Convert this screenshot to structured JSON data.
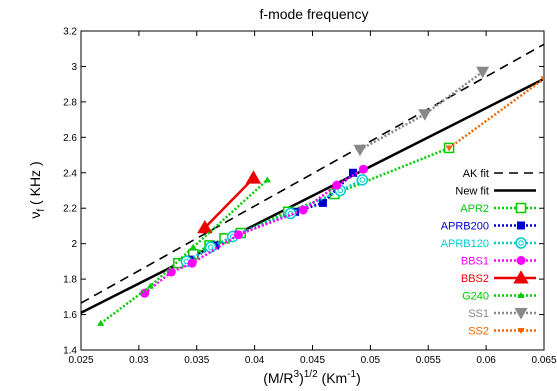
{
  "chart_data": {
    "type": "line",
    "title": "f-mode frequency",
    "ylabel_main": "ν",
    "ylabel_sub": "f",
    "ylabel_unit": " ( KHz )",
    "xlabel_main": "(M/R",
    "xlabel_sup1": "3",
    "xlabel_mid": ")",
    "xlabel_sup2": "1/2",
    "xlabel_unit": " (Km",
    "xlabel_sup3": "-1",
    "xlabel_end": ")",
    "xlim": [
      0.025,
      0.065
    ],
    "ylim": [
      1.4,
      3.2
    ],
    "xticks": [
      "0.025",
      "0.03",
      "0.035",
      "0.04",
      "0.045",
      "0.05",
      "0.055",
      "0.06",
      "0.065"
    ],
    "yticks": [
      "1.4",
      "1.6",
      "1.8",
      "2",
      "2.2",
      "2.4",
      "2.6",
      "2.8",
      "3",
      "3.2"
    ],
    "grid": false,
    "legend_position": "right",
    "series": [
      {
        "name": "AK fit",
        "color": "#000000",
        "style": "dashed",
        "marker": "none",
        "x": [
          0.025,
          0.065
        ],
        "y": [
          1.665,
          3.125
        ]
      },
      {
        "name": "New fit",
        "color": "#000000",
        "style": "solid",
        "marker": "none",
        "x": [
          0.025,
          0.065
        ],
        "y": [
          1.61,
          2.93
        ]
      },
      {
        "name": "APR2",
        "color": "#00cc00",
        "style": "dotted",
        "marker": "open-square",
        "x": [
          0.0334,
          0.0347,
          0.0361,
          0.0374,
          0.0388,
          0.0429,
          0.0469,
          0.0568
        ],
        "y": [
          1.89,
          1.94,
          1.99,
          2.03,
          2.06,
          2.18,
          2.28,
          2.54
        ]
      },
      {
        "name": "APRB200",
        "color": "#0000cc",
        "style": "dotted",
        "marker": "filled-square",
        "x": [
          0.0344,
          0.0366,
          0.0384,
          0.0435,
          0.0459,
          0.0485
        ],
        "y": [
          1.91,
          1.99,
          2.05,
          2.18,
          2.23,
          2.4
        ]
      },
      {
        "name": "APRB120",
        "color": "#00cccc",
        "style": "dotted",
        "marker": "open-circle",
        "x": [
          0.0341,
          0.0362,
          0.0381,
          0.0431,
          0.0474,
          0.0493
        ],
        "y": [
          1.9,
          1.98,
          2.04,
          2.17,
          2.3,
          2.36
        ]
      },
      {
        "name": "BBS1",
        "color": "#ff00ff",
        "style": "dotted",
        "marker": "filled-circle",
        "x": [
          0.0305,
          0.0328,
          0.0346,
          0.0386,
          0.0442,
          0.0471,
          0.0494
        ],
        "y": [
          1.72,
          1.84,
          1.89,
          2.05,
          2.19,
          2.33,
          2.42
        ]
      },
      {
        "name": "BBS2",
        "color": "#ee0000",
        "style": "solid",
        "marker": "filled-triangle",
        "x": [
          0.0357,
          0.0399
        ],
        "y": [
          2.09,
          2.37
        ]
      },
      {
        "name": "G240",
        "color": "#00cc00",
        "style": "dotted",
        "marker": "small-triangle",
        "x": [
          0.0267,
          0.031,
          0.0347,
          0.0411
        ],
        "y": [
          1.55,
          1.76,
          1.98,
          2.36
        ]
      },
      {
        "name": "SS1",
        "color": "#888888",
        "style": "dotted",
        "marker": "down-triangle",
        "x": [
          0.0491,
          0.0547,
          0.0597
        ],
        "y": [
          2.53,
          2.73,
          2.97
        ]
      },
      {
        "name": "SS2",
        "color": "#ee6600",
        "style": "dotted",
        "marker": "small-down-triangle",
        "x": [
          0.0568,
          0.065
        ],
        "y": [
          2.54,
          2.93
        ]
      }
    ]
  }
}
